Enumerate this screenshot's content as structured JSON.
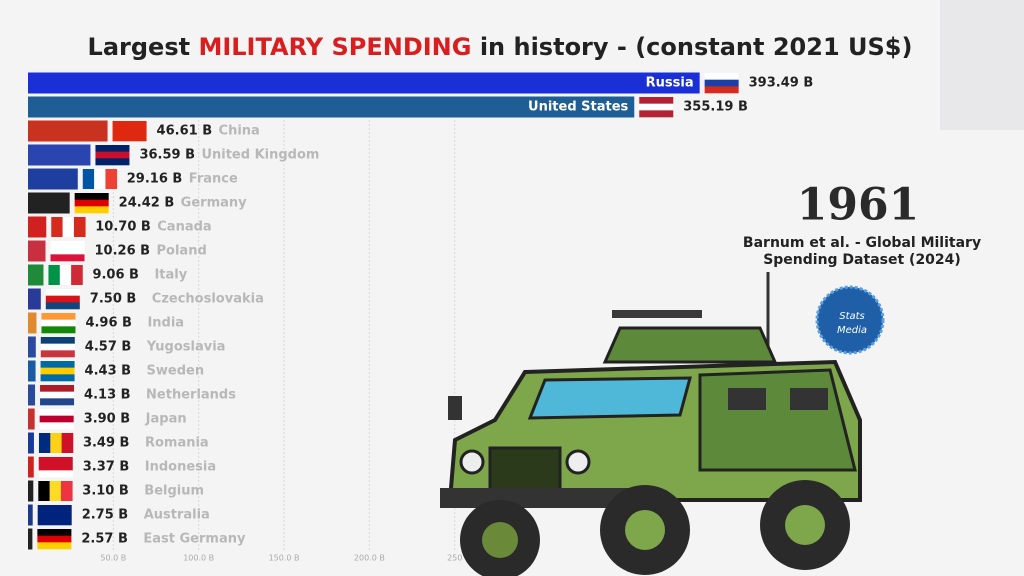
{
  "chart_data": {
    "type": "bar",
    "orientation": "horizontal",
    "title": {
      "before": "Largest ",
      "highlight": "MILITARY SPENDING",
      "after": " in history  - (constant 2021 US$)"
    },
    "categories": [
      "Russia",
      "United States",
      "China",
      "United Kingdom",
      "France",
      "Germany",
      "Canada",
      "Poland",
      "Italy",
      "Czechoslovakia",
      "India",
      "Yugoslavia",
      "Sweden",
      "Netherlands",
      "Japan",
      "Romania",
      "Indonesia",
      "Belgium",
      "Australia",
      "East Germany"
    ],
    "values": [
      393.49,
      355.19,
      46.61,
      36.59,
      29.16,
      24.42,
      10.7,
      10.26,
      9.06,
      7.5,
      4.96,
      4.57,
      4.43,
      4.13,
      3.9,
      3.49,
      3.37,
      3.1,
      2.75,
      2.57
    ],
    "value_labels": [
      "393.49 B",
      "355.19 B",
      "46.61 B",
      "36.59 B",
      "29.16 B",
      "24.42 B",
      "10.70 B",
      "10.26 B",
      "9.06 B",
      "7.50 B",
      "4.96 B",
      "4.57 B",
      "4.43 B",
      "4.13 B",
      "3.90 B",
      "3.49 B",
      "3.37 B",
      "3.10 B",
      "2.75 B",
      "2.57 B"
    ],
    "colors": [
      "#1a2fd6",
      "#1f5e94",
      "#c8321e",
      "#2a44b0",
      "#1e3fa0",
      "#222222",
      "#d02020",
      "#c83040",
      "#1e8a3a",
      "#2a3a9a",
      "#e08a30",
      "#2a4aa0",
      "#1a5aa0",
      "#2a4a9a",
      "#c83030",
      "#1a3a9a",
      "#d02020",
      "#222222",
      "#1a3a8a",
      "#222222"
    ],
    "xlim": [
      0,
      580
    ],
    "xticks": [
      {
        "value": 50,
        "label": "50.0 B"
      },
      {
        "value": 100,
        "label": "100.0 B"
      },
      {
        "value": 150,
        "label": "150.0 B"
      },
      {
        "value": 200,
        "label": "200.0 B"
      },
      {
        "value": 250,
        "label": "250"
      }
    ],
    "grid": true,
    "annotations": {
      "year": "1961",
      "source_line1": "Barnum et al. - Global Military",
      "source_line2": "Spending Dataset (2024)",
      "logo_line1": "Stats",
      "logo_line2": "Media"
    }
  }
}
